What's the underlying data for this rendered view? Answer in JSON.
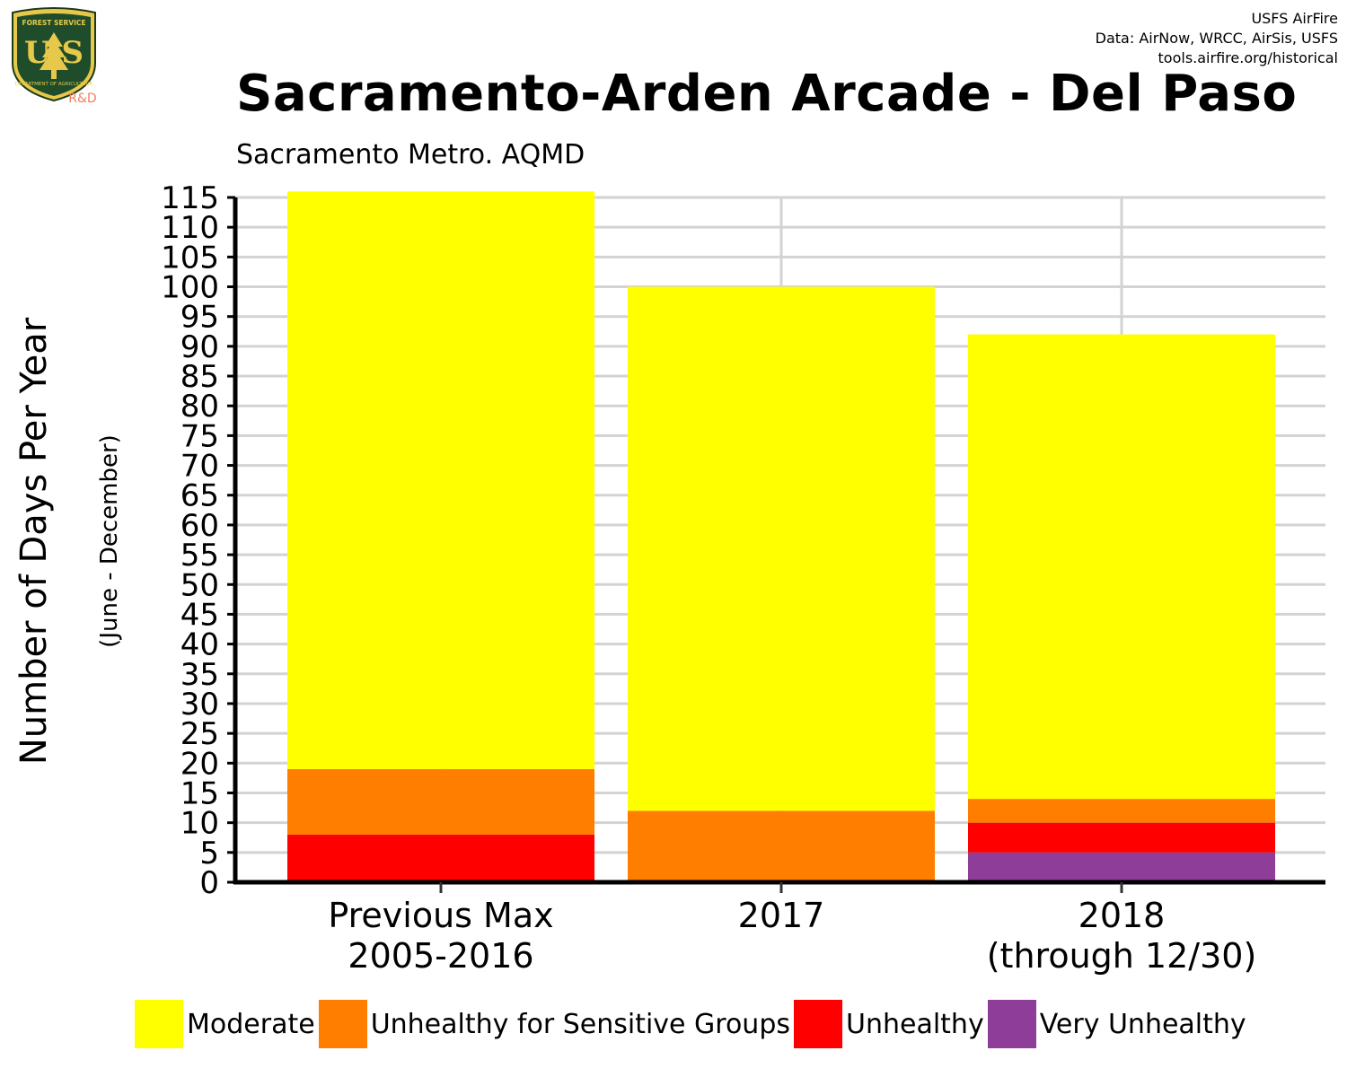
{
  "credits": {
    "line1": "USFS AirFire",
    "line2": "Data: AirNow, WRCC, AirSis, USFS",
    "line3": "tools.airfire.org/historical"
  },
  "logo": {
    "text_top": "FOREST SERVICE",
    "text_main": "USFS",
    "text_bottom": "DEPARTMENT OF AGRICULTURE",
    "tag": "R&D"
  },
  "chart_data": {
    "type": "bar",
    "stacked": true,
    "title": "Sacramento-Arden Arcade - Del Paso",
    "subtitle": "Sacramento Metro. AQMD",
    "ylabel": "Number of Days Per Year",
    "ylabel_sub": "(June - December)",
    "xlabel": "",
    "categories": [
      [
        "Previous Max",
        "2005-2016"
      ],
      [
        "2017"
      ],
      [
        "2018",
        "(through 12/30)"
      ]
    ],
    "ylim": [
      0,
      115
    ],
    "yticks": [
      0,
      5,
      10,
      15,
      20,
      25,
      30,
      35,
      40,
      45,
      50,
      55,
      60,
      65,
      70,
      75,
      80,
      85,
      90,
      95,
      100,
      105,
      110,
      115
    ],
    "grid": true,
    "legend_position": "bottom",
    "series": [
      {
        "name": "Very Unhealthy",
        "color": "#8E3D99",
        "values": [
          0,
          0,
          5
        ]
      },
      {
        "name": "Unhealthy",
        "color": "#FF0000",
        "values": [
          8,
          0,
          5
        ]
      },
      {
        "name": "Unhealthy for Sensitive Groups",
        "color": "#FF7E00",
        "values": [
          11,
          12,
          4
        ]
      },
      {
        "name": "Moderate",
        "color": "#FFFF00",
        "values": [
          97,
          88,
          78
        ]
      }
    ],
    "legend": [
      {
        "name": "Moderate",
        "color": "#FFFF00"
      },
      {
        "name": "Unhealthy for Sensitive Groups",
        "color": "#FF7E00"
      },
      {
        "name": "Unhealthy",
        "color": "#FF0000"
      },
      {
        "name": "Very Unhealthy",
        "color": "#8E3D99"
      }
    ]
  }
}
